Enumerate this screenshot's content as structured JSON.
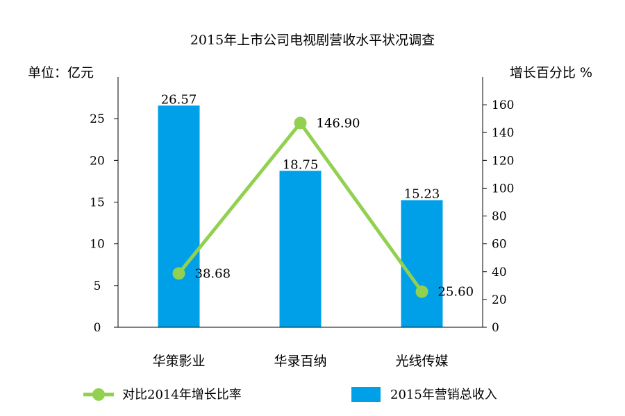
{
  "chart_data": {
    "type": "bar",
    "title": "2015年上市公司电视剧营收水平状况调查",
    "ylabel": "单位：亿元",
    "y2label": "增长百分比 %",
    "categories": [
      "华策影业",
      "华录百纳",
      "光线传媒"
    ],
    "ylim": [
      0,
      30
    ],
    "yticks": [
      0,
      5,
      10,
      15,
      20,
      25
    ],
    "y2lim": [
      0,
      180
    ],
    "y2ticks": [
      0,
      20,
      40,
      60,
      80,
      100,
      120,
      140,
      160
    ],
    "series": [
      {
        "name": "2015年营销总收入",
        "kind": "bar",
        "axis": "left",
        "color": "#00A0E9",
        "values": [
          26.57,
          18.75,
          15.23
        ],
        "labels": [
          "26.57",
          "18.75",
          "15.23"
        ]
      },
      {
        "name": "对比2014年增长比率",
        "kind": "line",
        "axis": "right",
        "color": "#92D050",
        "values": [
          38.68,
          146.9,
          25.6
        ],
        "labels": [
          "38.68",
          "146.90",
          "25.60"
        ]
      }
    ],
    "legend_position": "bottom",
    "grid": false
  }
}
